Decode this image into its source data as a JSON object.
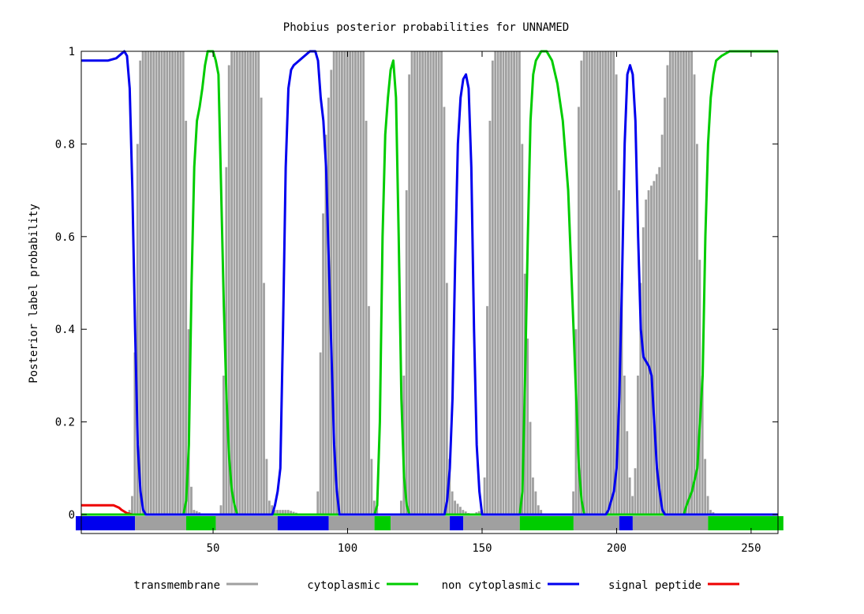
{
  "chart_data": {
    "type": "line",
    "title": "Phobius posterior probabilities for UNNAMED",
    "xlabel": "",
    "ylabel": "Posterior label probability",
    "xlim": [
      1,
      260
    ],
    "ylim": [
      0,
      1
    ],
    "xticks": [
      50,
      100,
      150,
      200,
      250
    ],
    "yticks": [
      0,
      0.2,
      0.4,
      0.6,
      0.8,
      1
    ],
    "ytick_labels": [
      "0",
      "0.2",
      "0.4",
      "0.6",
      "0.8",
      "1"
    ],
    "grid": false,
    "legend": {
      "placement": "bottom",
      "entries": [
        {
          "label": "transmembrane",
          "color": "#a0a0a0"
        },
        {
          "label": "cytoplasmic",
          "color": "#00cc00"
        },
        {
          "label": "non cytoplasmic",
          "color": "#0000ee"
        },
        {
          "label": "signal peptide",
          "color": "#ee0000"
        }
      ]
    },
    "series": [
      {
        "name": "transmembrane",
        "style": "bars",
        "color": "#a0a0a0",
        "points": [
          [
            1,
            0
          ],
          [
            18,
            0
          ],
          [
            19,
            0.01
          ],
          [
            20,
            0.04
          ],
          [
            21,
            0.35
          ],
          [
            22,
            0.8
          ],
          [
            23,
            0.98
          ],
          [
            24,
            1
          ],
          [
            39,
            1
          ],
          [
            40,
            0.85
          ],
          [
            41,
            0.4
          ],
          [
            42,
            0.06
          ],
          [
            43,
            0.01
          ],
          [
            47,
            0
          ],
          [
            52,
            0
          ],
          [
            53,
            0.02
          ],
          [
            54,
            0.3
          ],
          [
            55,
            0.75
          ],
          [
            56,
            0.97
          ],
          [
            57,
            1
          ],
          [
            67,
            1
          ],
          [
            68,
            0.9
          ],
          [
            69,
            0.5
          ],
          [
            70,
            0.12
          ],
          [
            71,
            0.03
          ],
          [
            73,
            0.01
          ],
          [
            78,
            0.01
          ],
          [
            83,
            0
          ],
          [
            88,
            0
          ],
          [
            89,
            0.05
          ],
          [
            90,
            0.35
          ],
          [
            91,
            0.65
          ],
          [
            92,
            0.82
          ],
          [
            93,
            0.9
          ],
          [
            94,
            0.96
          ],
          [
            95,
            1
          ],
          [
            106,
            1
          ],
          [
            107,
            0.85
          ],
          [
            108,
            0.45
          ],
          [
            109,
            0.12
          ],
          [
            110,
            0.03
          ],
          [
            112,
            0
          ],
          [
            119,
            0
          ],
          [
            120,
            0.03
          ],
          [
            121,
            0.3
          ],
          [
            122,
            0.7
          ],
          [
            123,
            0.95
          ],
          [
            124,
            1
          ],
          [
            135,
            1
          ],
          [
            136,
            0.88
          ],
          [
            137,
            0.5
          ],
          [
            138,
            0.12
          ],
          [
            139,
            0.05
          ],
          [
            140,
            0.03
          ],
          [
            143,
            0.01
          ],
          [
            146,
            0
          ],
          [
            150,
            0.01
          ],
          [
            151,
            0.08
          ],
          [
            152,
            0.45
          ],
          [
            153,
            0.85
          ],
          [
            154,
            0.98
          ],
          [
            155,
            1
          ],
          [
            164,
            1
          ],
          [
            165,
            0.8
          ],
          [
            166,
            0.52
          ],
          [
            167,
            0.38
          ],
          [
            168,
            0.2
          ],
          [
            169,
            0.08
          ],
          [
            171,
            0.02
          ],
          [
            173,
            0
          ],
          [
            183,
            0
          ],
          [
            184,
            0.05
          ],
          [
            185,
            0.4
          ],
          [
            186,
            0.88
          ],
          [
            187,
            0.98
          ],
          [
            188,
            1
          ],
          [
            199,
            1
          ],
          [
            200,
            0.95
          ],
          [
            201,
            0.7
          ],
          [
            202,
            0.5
          ],
          [
            203,
            0.3
          ],
          [
            204,
            0.18
          ],
          [
            205,
            0.08
          ],
          [
            206,
            0.04
          ],
          [
            207,
            0.1
          ],
          [
            208,
            0.3
          ],
          [
            209,
            0.5
          ],
          [
            210,
            0.62
          ],
          [
            211,
            0.68
          ],
          [
            212,
            0.7
          ],
          [
            214,
            0.72
          ],
          [
            216,
            0.75
          ],
          [
            217,
            0.82
          ],
          [
            218,
            0.9
          ],
          [
            219,
            0.97
          ],
          [
            220,
            1
          ],
          [
            228,
            1
          ],
          [
            229,
            0.95
          ],
          [
            230,
            0.8
          ],
          [
            231,
            0.55
          ],
          [
            232,
            0.3
          ],
          [
            233,
            0.12
          ],
          [
            234,
            0.04
          ],
          [
            235,
            0.01
          ],
          [
            237,
            0
          ],
          [
            260,
            0
          ]
        ]
      },
      {
        "name": "cytoplasmic",
        "style": "line",
        "color": "#00cc00",
        "points": [
          [
            1,
            0
          ],
          [
            39,
            0
          ],
          [
            40,
            0.03
          ],
          [
            41,
            0.15
          ],
          [
            42,
            0.5
          ],
          [
            43,
            0.75
          ],
          [
            44,
            0.85
          ],
          [
            45,
            0.88
          ],
          [
            46,
            0.92
          ],
          [
            47,
            0.97
          ],
          [
            48,
            1
          ],
          [
            50,
            1
          ],
          [
            51,
            0.98
          ],
          [
            52,
            0.95
          ],
          [
            53,
            0.7
          ],
          [
            54,
            0.45
          ],
          [
            55,
            0.25
          ],
          [
            56,
            0.12
          ],
          [
            57,
            0.05
          ],
          [
            58,
            0.02
          ],
          [
            59,
            0
          ],
          [
            110,
            0
          ],
          [
            111,
            0.02
          ],
          [
            112,
            0.2
          ],
          [
            113,
            0.6
          ],
          [
            114,
            0.82
          ],
          [
            115,
            0.9
          ],
          [
            116,
            0.96
          ],
          [
            117,
            0.98
          ],
          [
            118,
            0.9
          ],
          [
            119,
            0.6
          ],
          [
            120,
            0.25
          ],
          [
            121,
            0.08
          ],
          [
            122,
            0.02
          ],
          [
            123,
            0
          ],
          [
            164,
            0
          ],
          [
            165,
            0.05
          ],
          [
            166,
            0.3
          ],
          [
            167,
            0.6
          ],
          [
            168,
            0.85
          ],
          [
            169,
            0.95
          ],
          [
            170,
            0.98
          ],
          [
            172,
            1
          ],
          [
            174,
            1
          ],
          [
            176,
            0.98
          ],
          [
            178,
            0.93
          ],
          [
            180,
            0.85
          ],
          [
            182,
            0.7
          ],
          [
            184,
            0.4
          ],
          [
            186,
            0.1
          ],
          [
            187,
            0.03
          ],
          [
            188,
            0
          ],
          [
            225,
            0
          ],
          [
            226,
            0.02
          ],
          [
            228,
            0.05
          ],
          [
            230,
            0.1
          ],
          [
            232,
            0.3
          ],
          [
            233,
            0.6
          ],
          [
            234,
            0.8
          ],
          [
            235,
            0.9
          ],
          [
            236,
            0.95
          ],
          [
            237,
            0.98
          ],
          [
            239,
            0.99
          ],
          [
            242,
            1
          ],
          [
            260,
            1
          ]
        ]
      },
      {
        "name": "non cytoplasmic",
        "style": "line",
        "color": "#0000ee",
        "points": [
          [
            1,
            0.98
          ],
          [
            11,
            0.98
          ],
          [
            14,
            0.985
          ],
          [
            16,
            0.995
          ],
          [
            17,
            1
          ],
          [
            18,
            0.99
          ],
          [
            19,
            0.92
          ],
          [
            20,
            0.7
          ],
          [
            21,
            0.4
          ],
          [
            22,
            0.15
          ],
          [
            23,
            0.05
          ],
          [
            24,
            0.01
          ],
          [
            25,
            0
          ],
          [
            72,
            0
          ],
          [
            73,
            0.02
          ],
          [
            74,
            0.05
          ],
          [
            75,
            0.1
          ],
          [
            76,
            0.4
          ],
          [
            77,
            0.75
          ],
          [
            78,
            0.92
          ],
          [
            79,
            0.96
          ],
          [
            80,
            0.97
          ],
          [
            82,
            0.98
          ],
          [
            84,
            0.99
          ],
          [
            86,
            1
          ],
          [
            88,
            1
          ],
          [
            89,
            0.98
          ],
          [
            90,
            0.9
          ],
          [
            91,
            0.85
          ],
          [
            92,
            0.75
          ],
          [
            93,
            0.55
          ],
          [
            94,
            0.35
          ],
          [
            95,
            0.15
          ],
          [
            96,
            0.05
          ],
          [
            97,
            0
          ],
          [
            136,
            0
          ],
          [
            137,
            0.03
          ],
          [
            138,
            0.1
          ],
          [
            139,
            0.25
          ],
          [
            140,
            0.55
          ],
          [
            141,
            0.8
          ],
          [
            142,
            0.9
          ],
          [
            143,
            0.94
          ],
          [
            144,
            0.95
          ],
          [
            145,
            0.92
          ],
          [
            146,
            0.75
          ],
          [
            147,
            0.4
          ],
          [
            148,
            0.15
          ],
          [
            149,
            0.05
          ],
          [
            150,
            0
          ],
          [
            196,
            0
          ],
          [
            197,
            0.01
          ],
          [
            198,
            0.03
          ],
          [
            199,
            0.05
          ],
          [
            200,
            0.1
          ],
          [
            201,
            0.25
          ],
          [
            202,
            0.5
          ],
          [
            203,
            0.8
          ],
          [
            204,
            0.95
          ],
          [
            205,
            0.97
          ],
          [
            206,
            0.95
          ],
          [
            207,
            0.85
          ],
          [
            208,
            0.6
          ],
          [
            209,
            0.4
          ],
          [
            210,
            0.34
          ],
          [
            211,
            0.33
          ],
          [
            212,
            0.32
          ],
          [
            213,
            0.3
          ],
          [
            214,
            0.2
          ],
          [
            215,
            0.1
          ],
          [
            216,
            0.05
          ],
          [
            217,
            0.01
          ],
          [
            218,
            0
          ],
          [
            260,
            0
          ]
        ]
      },
      {
        "name": "signal peptide",
        "style": "line",
        "color": "#ee0000",
        "points": [
          [
            1,
            0.02
          ],
          [
            13,
            0.02
          ],
          [
            15,
            0.015
          ],
          [
            16,
            0.01
          ],
          [
            18,
            0.003
          ],
          [
            20,
            0
          ],
          [
            260,
            0
          ]
        ]
      }
    ],
    "topology_bar": [
      {
        "label": "non cytoplasmic",
        "color": "#0000ee",
        "range": [
          1,
          21
        ]
      },
      {
        "label": "transmembrane",
        "color": "#a0a0a0",
        "range": [
          21,
          40
        ]
      },
      {
        "label": "cytoplasmic",
        "color": "#00cc00",
        "range": [
          40,
          51
        ]
      },
      {
        "label": "transmembrane",
        "color": "#a0a0a0",
        "range": [
          51,
          74
        ]
      },
      {
        "label": "non cytoplasmic",
        "color": "#0000ee",
        "range": [
          74,
          93
        ]
      },
      {
        "label": "transmembrane",
        "color": "#a0a0a0",
        "range": [
          93,
          110
        ]
      },
      {
        "label": "cytoplasmic",
        "color": "#00cc00",
        "range": [
          110,
          116
        ]
      },
      {
        "label": "transmembrane",
        "color": "#a0a0a0",
        "range": [
          116,
          138
        ]
      },
      {
        "label": "non cytoplasmic",
        "color": "#0000ee",
        "range": [
          138,
          143
        ]
      },
      {
        "label": "transmembrane",
        "color": "#a0a0a0",
        "range": [
          143,
          164
        ]
      },
      {
        "label": "cytoplasmic",
        "color": "#00cc00",
        "range": [
          164,
          184
        ]
      },
      {
        "label": "transmembrane",
        "color": "#a0a0a0",
        "range": [
          184,
          201
        ]
      },
      {
        "label": "non cytoplasmic",
        "color": "#0000ee",
        "range": [
          201,
          206
        ]
      },
      {
        "label": "transmembrane",
        "color": "#a0a0a0",
        "range": [
          206,
          234
        ]
      },
      {
        "label": "cytoplasmic",
        "color": "#00cc00",
        "range": [
          234,
          262
        ]
      }
    ]
  }
}
